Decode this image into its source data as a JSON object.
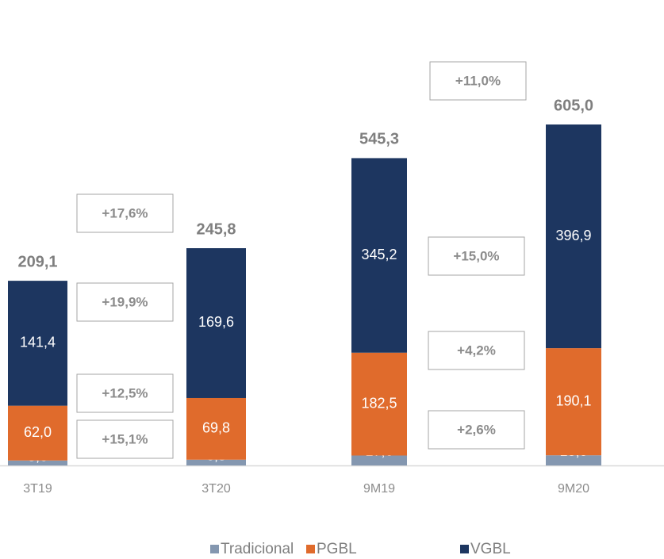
{
  "chart_data": {
    "type": "bar",
    "stacked": true,
    "categories": [
      "3T19",
      "3T20",
      "9M19",
      "9M20"
    ],
    "series": [
      {
        "name": "Tradicional",
        "color": "#8497b0",
        "values": [
          5.6,
          6.5,
          17.6,
          18.0
        ],
        "value_labels": [
          "5,6",
          "6,5",
          "17,6",
          "18,0"
        ]
      },
      {
        "name": "PGBL",
        "color": "#e06b2c",
        "values": [
          62.0,
          69.8,
          182.5,
          190.1
        ],
        "value_labels": [
          "62,0",
          "69,8",
          "182,5",
          "190,1"
        ]
      },
      {
        "name": "VGBL",
        "color": "#1d3660",
        "values": [
          141.4,
          169.6,
          345.2,
          396.9
        ],
        "value_labels": [
          "141,4",
          "169,6",
          "345,2",
          "396,9"
        ]
      }
    ],
    "totals": [
      209.1,
      245.8,
      545.3,
      605.0
    ],
    "total_labels": [
      "209,1",
      "245,8",
      "545,3",
      "605,0"
    ],
    "annotations": [
      "+17,6%",
      "+19,9%",
      "+12,5%",
      "+15,1%",
      "+11,0%",
      "+15,0%",
      "+4,2%",
      "+2,6%"
    ]
  }
}
